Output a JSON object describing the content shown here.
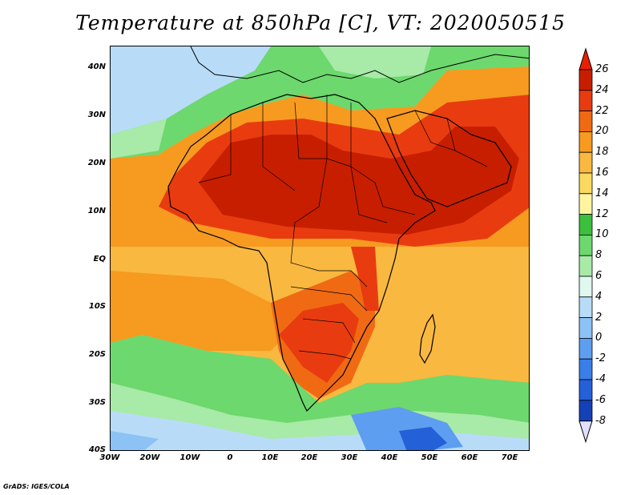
{
  "title": "Temperature at 850hPa [C], VT: 2020050515",
  "credit": "GrADS: IGES/COLA",
  "map": {
    "lon_range": [
      -30,
      76
    ],
    "lat_range": [
      -40,
      45
    ],
    "lat_ticks": [
      {
        "value": 40,
        "label": "40N"
      },
      {
        "value": 30,
        "label": "30N"
      },
      {
        "value": 20,
        "label": "20N"
      },
      {
        "value": 10,
        "label": "10N"
      },
      {
        "value": 0,
        "label": "EQ"
      },
      {
        "value": -10,
        "label": "10S"
      },
      {
        "value": -20,
        "label": "20S"
      },
      {
        "value": -30,
        "label": "30S"
      },
      {
        "value": -40,
        "label": "40S"
      }
    ],
    "lon_ticks": [
      {
        "value": -30,
        "label": "30W"
      },
      {
        "value": -20,
        "label": "20W"
      },
      {
        "value": -10,
        "label": "10W"
      },
      {
        "value": 0,
        "label": "0"
      },
      {
        "value": 10,
        "label": "10E"
      },
      {
        "value": 20,
        "label": "20E"
      },
      {
        "value": 30,
        "label": "30E"
      },
      {
        "value": 40,
        "label": "40E"
      },
      {
        "value": 50,
        "label": "50E"
      },
      {
        "value": 60,
        "label": "60E"
      },
      {
        "value": 70,
        "label": "70E"
      }
    ]
  },
  "colorbar": {
    "levels": [
      {
        "label": "26",
        "color": "#c81e00"
      },
      {
        "label": "24",
        "color": "#e83c10"
      },
      {
        "label": "22",
        "color": "#f06a14"
      },
      {
        "label": "20",
        "color": "#f79a20"
      },
      {
        "label": "18",
        "color": "#f9b840"
      },
      {
        "label": "16",
        "color": "#fbd860"
      },
      {
        "label": "14",
        "color": "#fff5a0"
      },
      {
        "label": "12",
        "color": "#3cbf3c"
      },
      {
        "label": "10",
        "color": "#6dd86d"
      },
      {
        "label": "8",
        "color": "#a8eaa8"
      },
      {
        "label": "6",
        "color": "#e0f8f0"
      },
      {
        "label": "4",
        "color": "#b8dcf8"
      },
      {
        "label": "2",
        "color": "#8cc2f4"
      },
      {
        "label": "0",
        "color": "#5e9ef0"
      },
      {
        "label": "-2",
        "color": "#3a7ee8"
      },
      {
        "label": "-4",
        "color": "#2460d8"
      },
      {
        "label": "-6",
        "color": "#1440b8"
      },
      {
        "label": "-8",
        "color": "#0c2080"
      }
    ],
    "top_color": "#e82000",
    "bottom_color": "#e0e0ff"
  }
}
